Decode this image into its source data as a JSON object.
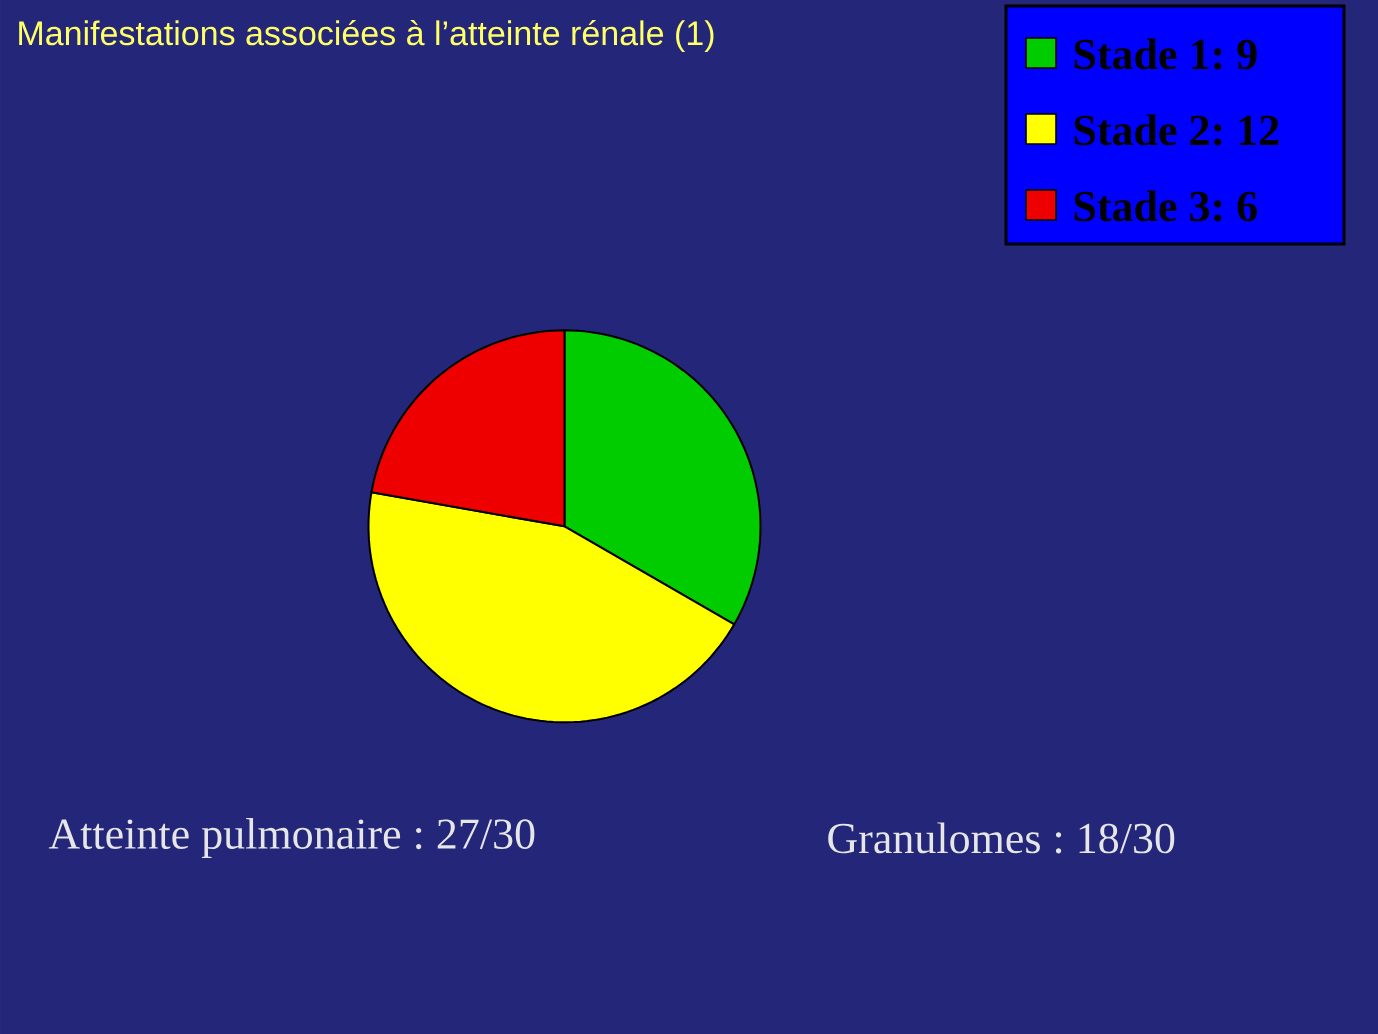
{
  "chart_data": {
    "type": "pie",
    "title": "Manifestations associées à l’atteinte rénale (1)",
    "categories": [
      "Stade 1: 9",
      "Stade 2: 12",
      "Stade 3: 6"
    ],
    "values": [
      9,
      12,
      6
    ],
    "colors": [
      "#00cc00",
      "#ffff00",
      "#ee0000"
    ],
    "legend": "top right",
    "annotations": [
      "Atteinte pulmonaire : 27/30",
      "Granulomes : 18/30"
    ]
  }
}
